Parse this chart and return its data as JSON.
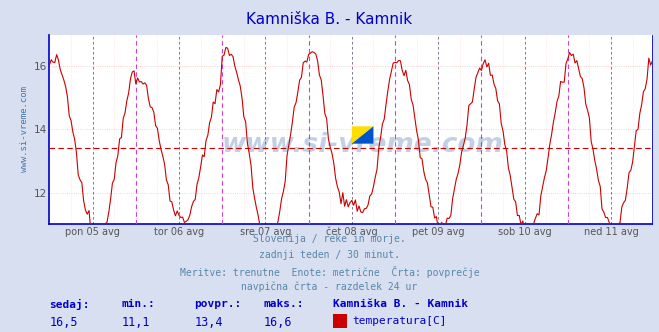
{
  "title": "Kamniška B. - Kamnik",
  "title_color": "#0000cc",
  "bg_color": "#d8dff0",
  "plot_bg_color": "#ffffff",
  "line_color": "#cc0000",
  "avg_line_color": "#cc0000",
  "avg_value": 13.4,
  "ylim": [
    11.0,
    17.0
  ],
  "yticks": [
    12,
    14,
    16
  ],
  "x_labels": [
    "pon 05 avg",
    "tor 06 avg",
    "sre 07 avg",
    "čet 08 avg",
    "pet 09 avg",
    "sob 10 avg",
    "ned 11 avg"
  ],
  "vline_color_magenta": "#cc44cc",
  "vline_color_dark": "#666688",
  "hgrid_color": "#ffbbbb",
  "vgrid_color": "#ffcccc",
  "watermark": "www.si-vreme.com",
  "watermark_color": "#3366aa",
  "info_line1": "Slovenija / reke in morje.",
  "info_line2": "zadnji teden / 30 minut.",
  "info_line3": "Meritve: trenutne  Enote: metrične  Črta: povprečje",
  "info_line4": "navpična črta - razdelek 24 ur",
  "info_color": "#5588aa",
  "legend_label": "Kamniška B. - Kamnik",
  "legend_temp_label": "temperatura[C]",
  "legend_color": "#cc0000",
  "stats_labels": [
    "sedaj:",
    "min.:",
    "povpr.:",
    "maks.:"
  ],
  "stats_values": [
    "16,5",
    "11,1",
    "13,4",
    "16,6"
  ],
  "stats_color": "#0000cc",
  "ylabel_text": "www.si-vreme.com",
  "ylabel_color": "#4477aa",
  "spine_color": "#0000cc",
  "n_points": 336
}
